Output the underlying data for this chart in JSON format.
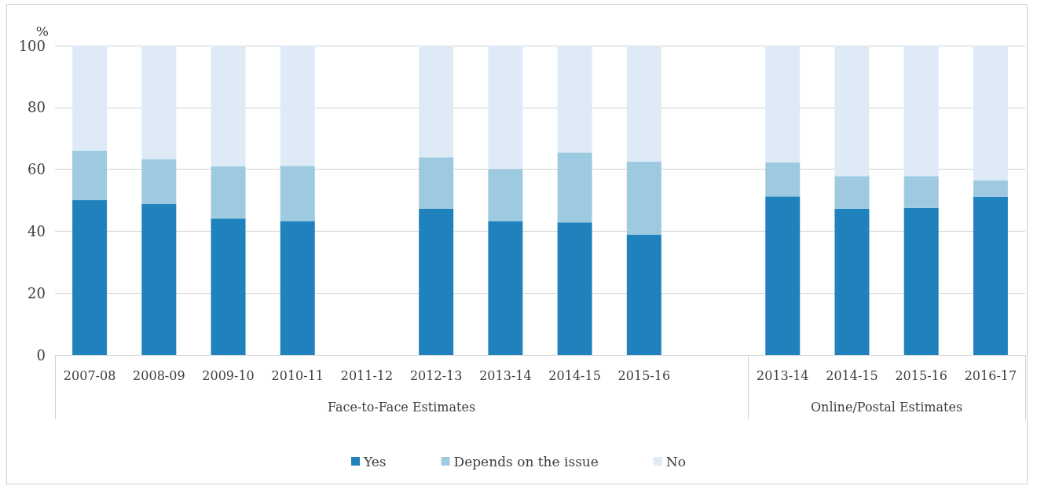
{
  "chart_data": {
    "type": "bar",
    "stacked": true,
    "ylabel": "%",
    "categories": [
      "2007-08",
      "2008-09",
      "2009-10",
      "2010-11",
      "2011-12",
      "2012-13",
      "2013-14",
      "2014-15",
      "2015-16",
      null,
      "2013-14",
      "2014-15",
      "2015-16",
      "2016-17"
    ],
    "series": [
      {
        "name": "Yes",
        "color": "#1f82bd",
        "values": [
          50,
          48.7,
          44.1,
          43.3,
          null,
          47.2,
          43.3,
          42.8,
          38.9,
          null,
          51.2,
          47.3,
          47.5,
          51.0
        ]
      },
      {
        "name": "Depends on the issue",
        "color": "#9ecae1",
        "values": [
          16,
          14.5,
          16.8,
          17.8,
          null,
          16.7,
          16.8,
          22.6,
          23.6,
          null,
          11,
          10.5,
          10.3,
          5.5
        ]
      },
      {
        "name": "No",
        "color": "#deebf7",
        "values": [
          34,
          36.8,
          39.1,
          38.9,
          null,
          36.1,
          39.9,
          34.6,
          37.5,
          null,
          37.8,
          42.2,
          42.2,
          43.5
        ]
      }
    ],
    "ylim": [
      0,
      100
    ],
    "yticks": [
      0,
      20,
      40,
      60,
      80,
      100
    ],
    "grid": "y",
    "legend": "bottom",
    "annotations": [
      "Face-to-Face Estimates",
      "Online/Postal Estimates"
    ]
  }
}
